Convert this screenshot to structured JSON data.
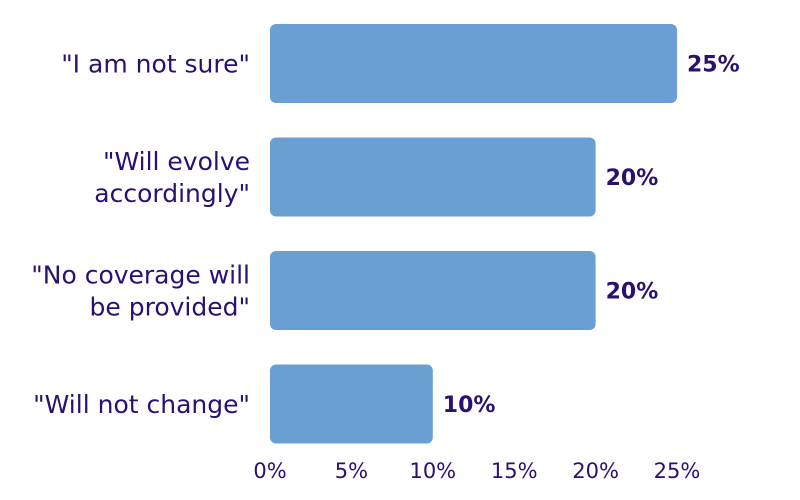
{
  "chart_data": {
    "type": "bar",
    "orientation": "horizontal",
    "categories": [
      [
        "\"I am not sure\""
      ],
      [
        "\"Will evolve",
        "accordingly\""
      ],
      [
        "\"No coverage will",
        "be provided\""
      ],
      [
        "\"Will not change\""
      ]
    ],
    "values": [
      25,
      20,
      20,
      10
    ],
    "value_labels": [
      "25%",
      "20%",
      "20%",
      "10%"
    ],
    "x_ticks": [
      "0%",
      "5%",
      "10%",
      "15%",
      "20%",
      "25%"
    ],
    "xlim": [
      0,
      25
    ],
    "grid": false,
    "legend": "none"
  },
  "colors": {
    "bar": "#6a9fd4",
    "text": "#2a1070"
  }
}
